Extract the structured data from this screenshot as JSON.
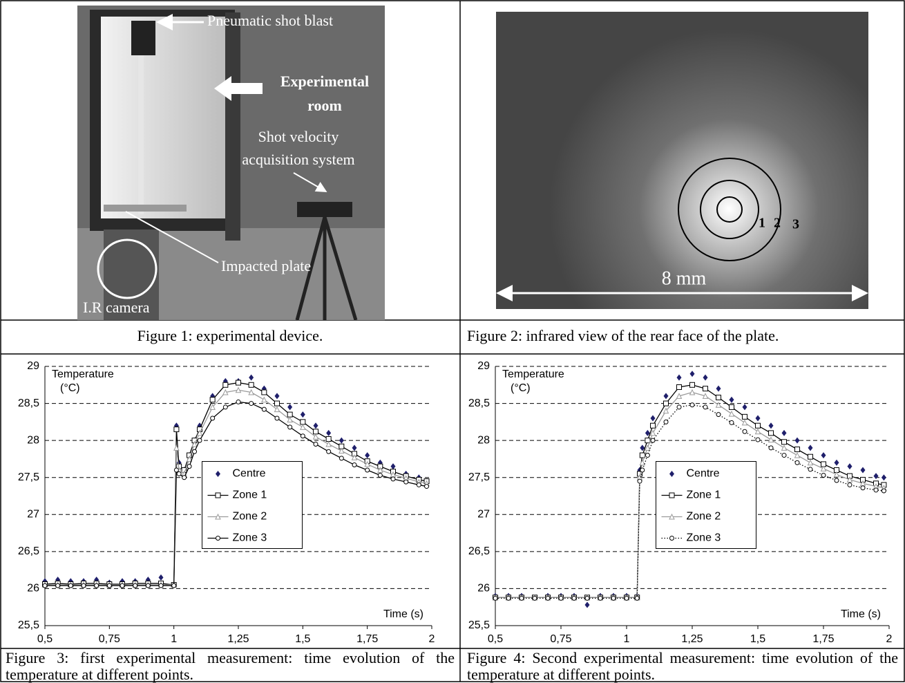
{
  "figure1": {
    "shot_blast": "Pneumatic shot blast",
    "room": [
      "Experimental",
      "room"
    ],
    "velocity": [
      "Shot velocity",
      "acquisition system"
    ],
    "plate": "Impacted plate",
    "camera": "I.R camera",
    "caption": "Figure 1: experimental device."
  },
  "figure2": {
    "zones": [
      "1",
      "2",
      "3"
    ],
    "scale": "8 mm",
    "caption": "Figure 2: infrared view of the rear face of the plate."
  },
  "chart_data": [
    {
      "type": "line",
      "caption": "Figure 3: first experimental measurement: time evolution of the temperature at different points.",
      "y_label": [
        "Temperature",
        "(°C)"
      ],
      "x_label": "Time (s)",
      "grid": true,
      "grid_style": "dashed",
      "legend": "center",
      "xlim": [
        0.5,
        2
      ],
      "ylim": [
        25.5,
        29
      ],
      "xticks": [
        {
          "value": 0.5,
          "label": "0,5"
        },
        {
          "value": 0.75,
          "label": "0,75"
        },
        1,
        {
          "value": 1.25,
          "label": "1,25"
        },
        {
          "value": 1.5,
          "label": "1,5"
        },
        {
          "value": 1.75,
          "label": "1,75"
        },
        2
      ],
      "yticks": [
        {
          "value": 25.5,
          "label": "25,5"
        },
        26,
        {
          "value": 26.5,
          "label": "26,5"
        },
        27,
        {
          "value": 27.5,
          "label": "27,5"
        },
        28,
        {
          "value": 28.5,
          "label": "28,5"
        },
        29
      ],
      "x": [
        0.5,
        0.55,
        0.6,
        0.65,
        0.7,
        0.75,
        0.8,
        0.85,
        0.9,
        0.95,
        1.0,
        1.01,
        1.02,
        1.04,
        1.06,
        1.08,
        1.1,
        1.15,
        1.2,
        1.25,
        1.3,
        1.35,
        1.4,
        1.45,
        1.5,
        1.55,
        1.6,
        1.65,
        1.7,
        1.75,
        1.8,
        1.85,
        1.9,
        1.95,
        1.98
      ],
      "series": [
        {
          "name": "Centre",
          "color": "#1f1f6b",
          "marker": "diamond",
          "line": "none",
          "values": [
            26.1,
            26.12,
            26.1,
            26.1,
            26.12,
            26.08,
            26.1,
            26.1,
            26.12,
            26.15,
            26.05,
            28.2,
            27.7,
            27.6,
            27.8,
            28.0,
            28.2,
            28.6,
            28.8,
            28.8,
            28.85,
            28.7,
            28.6,
            28.45,
            28.35,
            28.2,
            28.1,
            28.0,
            27.9,
            27.8,
            27.7,
            27.65,
            27.55,
            27.5,
            27.45
          ]
        },
        {
          "name": "Zone 1",
          "color": "#000000",
          "marker": "square",
          "line": "solid",
          "values": [
            26.06,
            26.07,
            26.06,
            26.07,
            26.07,
            26.06,
            26.06,
            26.07,
            26.07,
            26.07,
            26.05,
            28.15,
            27.65,
            27.6,
            27.8,
            28.0,
            28.15,
            28.55,
            28.75,
            28.78,
            28.75,
            28.65,
            28.5,
            28.35,
            28.25,
            28.12,
            28.02,
            27.92,
            27.82,
            27.72,
            27.65,
            27.58,
            27.52,
            27.47,
            27.45
          ]
        },
        {
          "name": "Zone 2",
          "color": "#9a9a9a",
          "marker": "triangle",
          "line": "solid",
          "values": [
            26.05,
            26.05,
            26.05,
            26.05,
            26.05,
            26.05,
            26.05,
            26.05,
            26.05,
            26.05,
            26.05,
            27.9,
            27.6,
            27.55,
            27.75,
            27.95,
            28.1,
            28.45,
            28.65,
            28.68,
            28.65,
            28.55,
            28.42,
            28.28,
            28.18,
            28.05,
            27.95,
            27.86,
            27.77,
            27.68,
            27.6,
            27.54,
            27.49,
            27.44,
            27.42
          ]
        },
        {
          "name": "Zone 3",
          "color": "#000000",
          "marker": "circle",
          "line": "solid",
          "values": [
            26.04,
            26.04,
            26.04,
            26.04,
            26.04,
            26.04,
            26.04,
            26.04,
            26.04,
            26.04,
            26.04,
            27.6,
            27.55,
            27.5,
            27.65,
            27.85,
            28.0,
            28.3,
            28.45,
            28.52,
            28.5,
            28.42,
            28.3,
            28.18,
            28.06,
            27.95,
            27.85,
            27.76,
            27.67,
            27.6,
            27.53,
            27.48,
            27.44,
            27.4,
            27.38
          ]
        }
      ]
    },
    {
      "type": "line",
      "caption": "Figure 4: Second experimental measurement: time evolution of the temperature at different points.",
      "y_label": [
        "Temperature",
        "(°C)"
      ],
      "x_label": "Time (s)",
      "grid": true,
      "grid_style": "dashed",
      "legend": "center",
      "xlim": [
        0.5,
        2
      ],
      "ylim": [
        25.5,
        29
      ],
      "xticks": [
        {
          "value": 0.5,
          "label": "0,5"
        },
        {
          "value": 0.75,
          "label": "0,75"
        },
        1,
        {
          "value": 1.25,
          "label": "1,25"
        },
        {
          "value": 1.5,
          "label": "1,5"
        },
        {
          "value": 1.75,
          "label": "1,75"
        },
        2
      ],
      "yticks": [
        {
          "value": 25.5,
          "label": "25,5"
        },
        26,
        {
          "value": 26.5,
          "label": "26,5"
        },
        27,
        {
          "value": 27.5,
          "label": "27,5"
        },
        28,
        {
          "value": 28.5,
          "label": "28,5"
        },
        29
      ],
      "x": [
        0.5,
        0.55,
        0.6,
        0.65,
        0.7,
        0.75,
        0.8,
        0.85,
        0.9,
        0.95,
        1.0,
        1.04,
        1.05,
        1.06,
        1.08,
        1.1,
        1.15,
        1.2,
        1.25,
        1.3,
        1.35,
        1.4,
        1.45,
        1.5,
        1.55,
        1.6,
        1.65,
        1.7,
        1.75,
        1.8,
        1.85,
        1.9,
        1.95,
        1.98
      ],
      "series": [
        {
          "name": "Centre",
          "color": "#1f1f6b",
          "marker": "diamond",
          "line": "none",
          "values": [
            25.9,
            25.9,
            25.9,
            25.88,
            25.9,
            25.9,
            25.9,
            25.78,
            25.9,
            25.9,
            25.9,
            25.9,
            27.6,
            27.9,
            28.1,
            28.3,
            28.6,
            28.85,
            28.9,
            28.85,
            28.7,
            28.55,
            28.45,
            28.3,
            28.2,
            28.1,
            28.0,
            27.9,
            27.8,
            27.7,
            27.65,
            27.6,
            27.52,
            27.5
          ]
        },
        {
          "name": "Zone 1",
          "color": "#000000",
          "marker": "square",
          "line": "solid",
          "values": [
            25.88,
            25.88,
            25.88,
            25.88,
            25.88,
            25.88,
            25.88,
            25.88,
            25.88,
            25.88,
            25.88,
            25.88,
            27.55,
            27.8,
            28.0,
            28.2,
            28.5,
            28.72,
            28.75,
            28.7,
            28.58,
            28.45,
            28.32,
            28.2,
            28.1,
            27.98,
            27.88,
            27.78,
            27.68,
            27.6,
            27.52,
            27.47,
            27.42,
            27.4
          ]
        },
        {
          "name": "Zone 2",
          "color": "#9a9a9a",
          "marker": "triangle",
          "line": "solid",
          "values": [
            25.88,
            25.88,
            25.88,
            25.88,
            25.88,
            25.88,
            25.88,
            25.88,
            25.88,
            25.88,
            25.88,
            25.88,
            27.5,
            27.7,
            27.9,
            28.1,
            28.4,
            28.6,
            28.65,
            28.6,
            28.48,
            28.36,
            28.24,
            28.12,
            28.01,
            27.9,
            27.8,
            27.7,
            27.62,
            27.54,
            27.47,
            27.42,
            27.38,
            27.36
          ]
        },
        {
          "name": "Zone 3",
          "color": "#000000",
          "marker": "circle",
          "line": "dotted",
          "values": [
            25.87,
            25.87,
            25.87,
            25.87,
            25.87,
            25.87,
            25.87,
            25.87,
            25.87,
            25.87,
            25.87,
            25.87,
            27.45,
            27.6,
            27.8,
            28.0,
            28.25,
            28.45,
            28.48,
            28.45,
            28.35,
            28.24,
            28.12,
            28.01,
            27.9,
            27.8,
            27.7,
            27.61,
            27.53,
            27.46,
            27.4,
            27.36,
            27.33,
            27.32
          ]
        }
      ]
    }
  ]
}
